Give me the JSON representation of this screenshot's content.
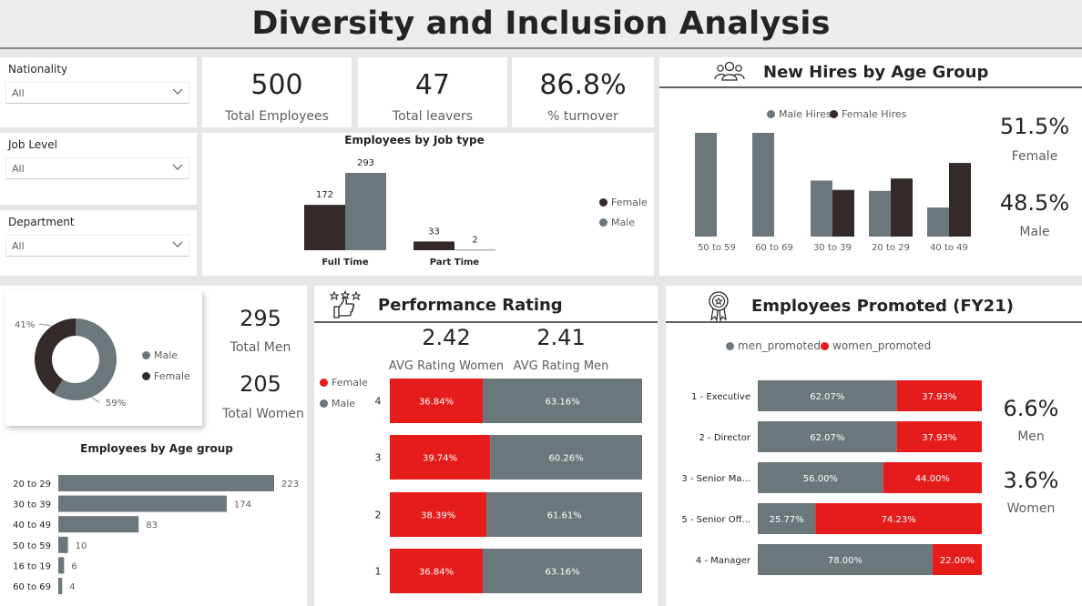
{
  "page_title": "Diversity and Inclusion Analysis",
  "slicers": [
    {
      "label": "Nationality",
      "value": "All"
    },
    {
      "label": "Job Level",
      "value": "All"
    },
    {
      "label": "Department",
      "value": "All"
    }
  ],
  "kpis": [
    {
      "value": "500",
      "label": "Total Employees"
    },
    {
      "value": "47",
      "label": "Total leavers"
    },
    {
      "value": "86.8%",
      "label": "% turnover"
    }
  ],
  "colors": {
    "female": "#342a2a",
    "male": "#6b777b",
    "red": "#e61c1c",
    "gray": "#6b777b"
  },
  "job_type_chart": {
    "title": "Employees by Job type",
    "legend": [
      "Female",
      "Male"
    ],
    "chart_data": {
      "type": "bar",
      "categories": [
        "Full Time",
        "Part Time"
      ],
      "series": [
        {
          "name": "Female",
          "values": [
            172,
            33
          ]
        },
        {
          "name": "Male",
          "values": [
            293,
            2
          ]
        }
      ],
      "ylim": [
        0,
        293
      ]
    }
  },
  "new_hires": {
    "title": "New Hires by Age Group",
    "legend": [
      "Male Hires",
      "Female Hires"
    ],
    "female_pct": "51.5%",
    "female_label": "Female",
    "male_pct": "48.5%",
    "male_label": "Male",
    "chart_data": {
      "type": "bar",
      "categories": [
        "50 to 59",
        "60 to 69",
        "30 to 39",
        "20 to 29",
        "40 to 49"
      ],
      "series": [
        {
          "name": "Male Hires",
          "values": [
            100,
            100,
            54,
            44,
            28
          ]
        },
        {
          "name": "Female Hires",
          "values": [
            0,
            0,
            45,
            56,
            71
          ]
        }
      ],
      "ylim": [
        0,
        100
      ]
    }
  },
  "gender_donut": {
    "legend": [
      "Male",
      "Female"
    ],
    "total_men_value": "295",
    "total_men_label": "Total Men",
    "total_women_value": "205",
    "total_women_label": "Total Women",
    "chart_data": {
      "type": "pie",
      "labels": [
        "Male",
        "Female"
      ],
      "values": [
        59,
        41
      ],
      "label_text": [
        "59%",
        "41%"
      ]
    }
  },
  "age_group_chart": {
    "title": "Employees by Age group",
    "chart_data": {
      "type": "bar",
      "orientation": "horizontal",
      "categories": [
        "20 to 29",
        "30 to 39",
        "40 to 49",
        "50 to 59",
        "16 to 19",
        "60 to 69"
      ],
      "values": [
        223,
        174,
        83,
        10,
        6,
        4
      ],
      "xlim": [
        0,
        223
      ]
    }
  },
  "performance": {
    "title": "Performance Rating",
    "avg_women_value": "2.42",
    "avg_women_label": "AVG Rating Women",
    "avg_men_value": "2.41",
    "avg_men_label": "AVG Rating Men",
    "legend": [
      "Female",
      "Male"
    ],
    "chart_data": {
      "type": "bar",
      "orientation": "horizontal",
      "stacked_percent": true,
      "categories": [
        "4",
        "3",
        "2",
        "1"
      ],
      "series": [
        {
          "name": "Female",
          "values": [
            36.84,
            39.74,
            38.39,
            36.84
          ],
          "labels": [
            "36.84%",
            "39.74%",
            "38.39%",
            "36.84%"
          ]
        },
        {
          "name": "Male",
          "values": [
            63.16,
            60.26,
            61.61,
            63.16
          ],
          "labels": [
            "63.16%",
            "60.26%",
            "61.61%",
            "63.16%"
          ]
        }
      ]
    }
  },
  "promoted": {
    "title": "Employees Promoted  (FY21)",
    "legend": [
      "men_promoted",
      "women_promoted"
    ],
    "men_pct": "6.6%",
    "men_label": "Men",
    "women_pct": "3.6%",
    "women_label": "Women",
    "chart_data": {
      "type": "bar",
      "orientation": "horizontal",
      "stacked_percent": true,
      "categories": [
        "1 - Executive",
        "2 - Director",
        "3 - Senior Ma...",
        "5 - Senior Off...",
        "4 - Manager"
      ],
      "series": [
        {
          "name": "men_promoted",
          "values": [
            62.07,
            62.07,
            56.0,
            25.77,
            78.0
          ],
          "labels": [
            "62.07%",
            "62.07%",
            "56.00%",
            "25.77%",
            "78.00%"
          ]
        },
        {
          "name": "women_promoted",
          "values": [
            37.93,
            37.93,
            44.0,
            74.23,
            22.0
          ],
          "labels": [
            "37.93%",
            "37.93%",
            "44.00%",
            "74.23%",
            "22.00%"
          ]
        }
      ]
    }
  },
  "icons": {
    "hires": "people-group-icon",
    "performance": "thumbs-up-stars-icon",
    "promoted": "award-ribbon-icon",
    "dropdown": "chevron-down-icon"
  }
}
